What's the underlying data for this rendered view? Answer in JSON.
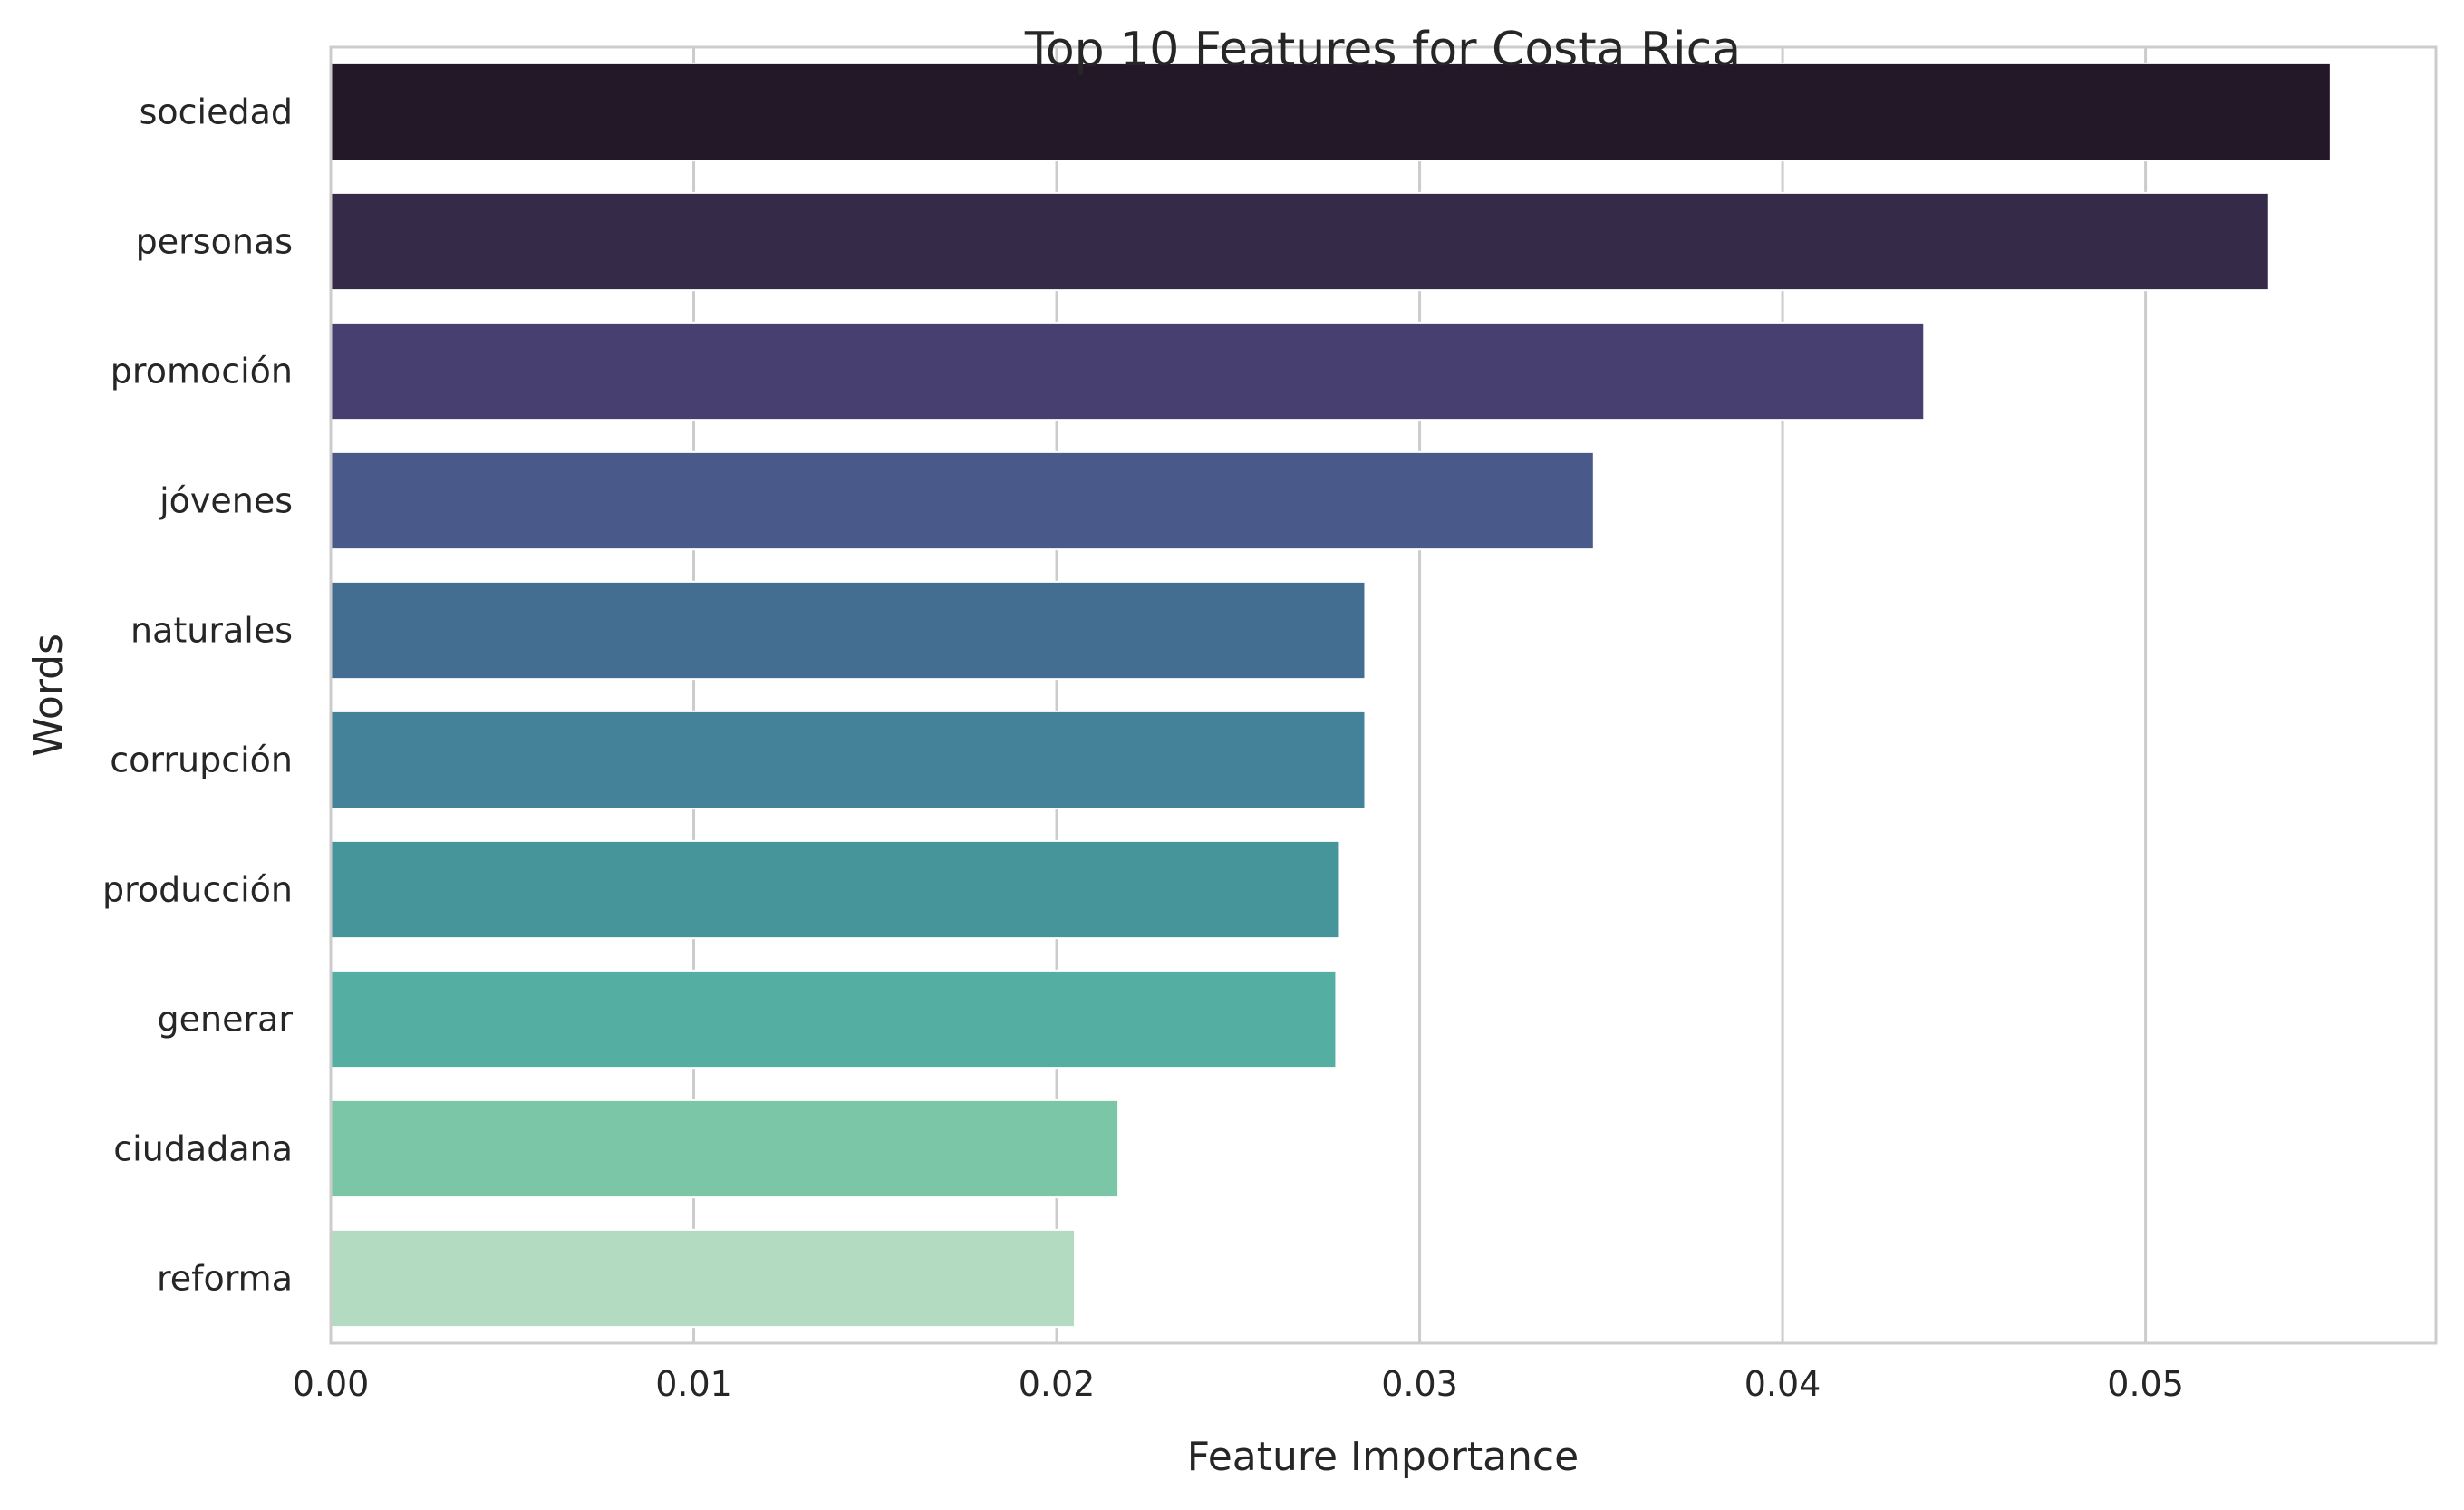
{
  "chart_data": {
    "type": "bar",
    "orientation": "horizontal",
    "title": "Top 10 Features for Costa Rica",
    "xlabel": "Feature Importance",
    "ylabel": "Words",
    "categories": [
      "sociedad",
      "personas",
      "promoción",
      "jóvenes",
      "naturales",
      "corrupción",
      "producción",
      "generar",
      "ciudadana",
      "reforma"
    ],
    "values": [
      0.0551,
      0.0534,
      0.0439,
      0.0348,
      0.0285,
      0.0285,
      0.0278,
      0.0277,
      0.0217,
      0.0205
    ],
    "xlim": [
      0,
      0.058
    ],
    "xticks": [
      0,
      0.01,
      0.02,
      0.03,
      0.04,
      0.05
    ],
    "xtick_labels": [
      "0.00",
      "0.01",
      "0.02",
      "0.03",
      "0.04",
      "0.05"
    ],
    "grid": "vertical",
    "colors": [
      "#231828",
      "#352a48",
      "#473f6f",
      "#48598a",
      "#436e91",
      "#438299",
      "#46959b",
      "#55aea2",
      "#7cc6a8",
      "#b2dbc2"
    ],
    "frame_color": "#cccccc",
    "grid_color": "#cccccc"
  }
}
